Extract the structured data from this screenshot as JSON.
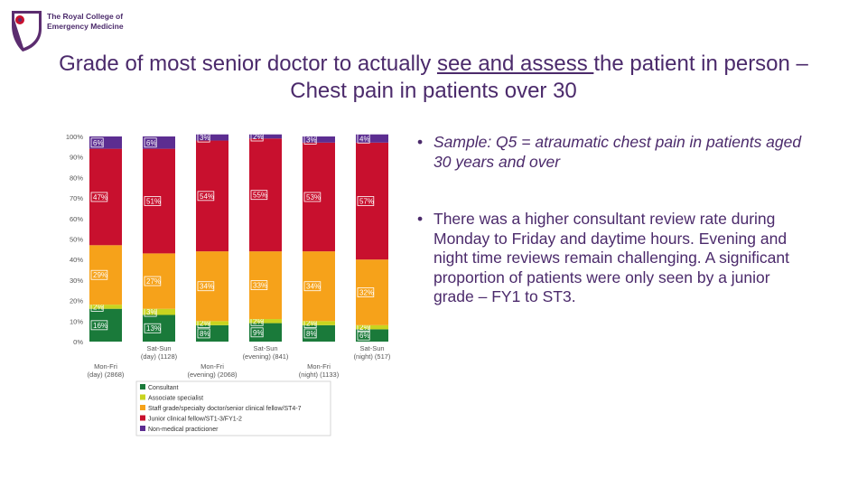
{
  "logo": {
    "line1": "The Royal College of",
    "line2": "Emergency Medicine",
    "brand_color": "#5b2c6f"
  },
  "title": {
    "part1": "Grade of most senior doctor to actually ",
    "underlined": "see and assess ",
    "part2": "the patient in person – Chest pain in patients over 30"
  },
  "bullets": [
    {
      "symbol": "•",
      "text": "Sample: Q5 = atraumatic chest pain in patients aged 30 years and over",
      "italic": true
    },
    {
      "symbol": "•",
      "text": "There was a higher consultant review rate during Monday to Friday and daytime hours. Evening and night time reviews remain challenging. A significant proportion of patients were only seen by a junior grade – FY1 to ST3.",
      "italic": false
    }
  ],
  "chart_data": {
    "type": "bar",
    "stacked": true,
    "percent": true,
    "ylim": [
      0,
      100
    ],
    "yticks": [
      "0%",
      "10%",
      "20%",
      "30%",
      "40%",
      "50%",
      "60%",
      "70%",
      "80%",
      "90%",
      "100%"
    ],
    "categories": [
      "Mon-Fri (day) (2868)",
      "Sat-Sun (day) (1128)",
      "Mon-Fri (evening) (2068)",
      "Sat-Sun (evening) (841)",
      "Mon-Fri (night) (1133)",
      "Sat-Sun (night) (517)"
    ],
    "category_lines": [
      [
        "Mon-Fri",
        "(day) (2868)"
      ],
      [
        "Sat-Sun",
        "(day) (1128)"
      ],
      [
        "Mon-Fri",
        "(evening) (2068)"
      ],
      [
        "Sat-Sun",
        "(evening) (841)"
      ],
      [
        "Mon-Fri",
        "(night) (1133)"
      ],
      [
        "Sat-Sun",
        "(night) (517)"
      ]
    ],
    "series": [
      {
        "name": "Consultant",
        "color": "#1a7a3a",
        "values": [
          16,
          13,
          8,
          9,
          8,
          6
        ],
        "labels": [
          "16%",
          "13%",
          "8%",
          "9%",
          "8%",
          "6%"
        ]
      },
      {
        "name": "Associate specialist",
        "color": "#c8d41f",
        "values": [
          2,
          3,
          2,
          2,
          2,
          2
        ],
        "labels": [
          "2%",
          "3%",
          "2%",
          "2%",
          "2%",
          "2%"
        ]
      },
      {
        "name": "Staff grade/specialty doctor/senior clinical fellow/ST4-7",
        "color": "#f6a21a",
        "values": [
          29,
          27,
          34,
          33,
          34,
          32
        ],
        "labels": [
          "29%",
          "27%",
          "34%",
          "33%",
          "34%",
          "32%"
        ]
      },
      {
        "name": "Junior clinical fellow/ST1-3/FY1-2",
        "color": "#c8102e",
        "values": [
          47,
          51,
          54,
          55,
          53,
          57
        ],
        "labels": [
          "47%",
          "51%",
          "54%",
          "55%",
          "53%",
          "57%"
        ]
      },
      {
        "name": "Non-medical practicioner",
        "color": "#5c2d91",
        "values": [
          6,
          6,
          3,
          2,
          3,
          4
        ],
        "labels": [
          "6%",
          "6%",
          "3%",
          "2%",
          "3%",
          "4%"
        ]
      }
    ],
    "legend_position": "bottom",
    "grid": false
  }
}
